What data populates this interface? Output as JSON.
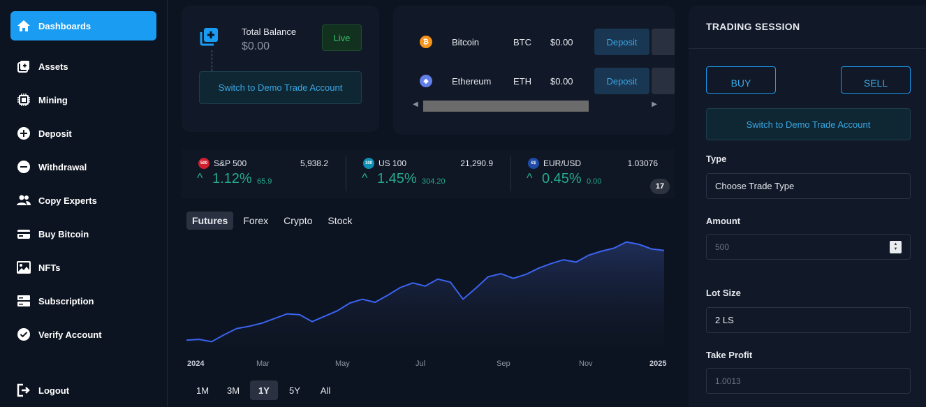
{
  "sidebar": {
    "items": [
      {
        "label": "Dashboards",
        "icon": "home-icon"
      },
      {
        "label": "Assets",
        "icon": "assets-icon"
      },
      {
        "label": "Mining",
        "icon": "chip-icon"
      },
      {
        "label": "Deposit",
        "icon": "plus-circle-icon"
      },
      {
        "label": "Withdrawal",
        "icon": "minus-circle-icon"
      },
      {
        "label": "Copy Experts",
        "icon": "users-icon"
      },
      {
        "label": "Buy Bitcoin",
        "icon": "card-icon"
      },
      {
        "label": "NFTs",
        "icon": "image-icon"
      },
      {
        "label": "Subscription",
        "icon": "server-icon"
      },
      {
        "label": "Verify Account",
        "icon": "check-circle-icon"
      },
      {
        "label": "Logout",
        "icon": "logout-icon"
      }
    ]
  },
  "balance": {
    "label": "Total Balance",
    "value": "$0.00",
    "live_label": "Live",
    "demo_label": "Switch to Demo Trade Account"
  },
  "coins": [
    {
      "name": "Bitcoin",
      "symbol": "BTC",
      "value": "$0.00",
      "deposit_label": "Deposit",
      "color": "#f7931a",
      "glyph": "₿"
    },
    {
      "name": "Ethereum",
      "symbol": "ETH",
      "value": "$0.00",
      "deposit_label": "Deposit",
      "color": "#627eea",
      "glyph": "◆"
    }
  ],
  "tickers": [
    {
      "badge": "500",
      "name": "S&P 500",
      "price": "5,938.2",
      "pct": "1.12%",
      "change": "65.9",
      "badge_color": "#d0202f"
    },
    {
      "badge": "100",
      "name": "US 100",
      "price": "21,290.9",
      "pct": "1.45%",
      "change": "304.20",
      "badge_color": "#0d8fb4"
    },
    {
      "badge": "€$",
      "name": "EUR/USD",
      "price": "1.03076",
      "pct": "0.45%",
      "change": "0.00",
      "badge_color": "#1f4aa8"
    }
  ],
  "tv_logo": "17",
  "tabs": [
    "Futures",
    "Forex",
    "Crypto",
    "Stock"
  ],
  "ranges": [
    "1M",
    "3M",
    "1Y",
    "5Y",
    "All"
  ],
  "chart_data": {
    "type": "area",
    "x_labels": [
      "2024",
      "Mar",
      "May",
      "Jul",
      "Sep",
      "Nov",
      "2025"
    ],
    "values": [
      4770,
      4780,
      4750,
      4840,
      4920,
      4950,
      4990,
      5050,
      5110,
      5100,
      5010,
      5080,
      5150,
      5250,
      5300,
      5260,
      5350,
      5450,
      5510,
      5470,
      5560,
      5520,
      5300,
      5440,
      5590,
      5630,
      5570,
      5620,
      5700,
      5760,
      5810,
      5780,
      5870,
      5920,
      5960,
      6040,
      6010,
      5950,
      5930
    ],
    "ylim": [
      4700,
      6100
    ],
    "line_color": "#3b63f0",
    "fill_color": "#1c2a55"
  },
  "session": {
    "title": "TRADING SESSION",
    "buy_label": "BUY",
    "sell_label": "SELL",
    "demo_label": "Switch to Demo Trade Account",
    "type_label": "Type",
    "type_value": "Choose Trade Type",
    "amount_label": "Amount",
    "amount_placeholder": "500",
    "lot_label": "Lot Size",
    "lot_value": "2 LS",
    "tp_label": "Take Profit",
    "tp_placeholder": "1.0013"
  }
}
